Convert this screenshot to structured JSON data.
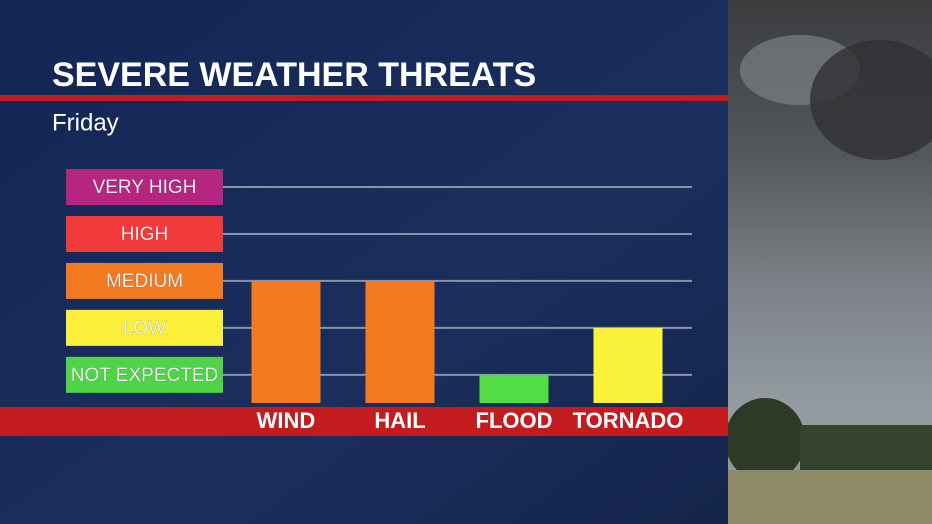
{
  "chart_data": {
    "type": "bar",
    "title": "SEVERE WEATHER THREATS",
    "subtitle": "Friday",
    "categories": [
      "WIND",
      "HAIL",
      "FLOOD",
      "TORNADO"
    ],
    "values": [
      3,
      3,
      1,
      2
    ],
    "colors": [
      "#f57a1f",
      "#f57a1f",
      "#52dc45",
      "#fbf23c"
    ],
    "ylim": [
      0.4,
      5
    ],
    "yticks": [
      {
        "value": 1,
        "label": "NOT EXPECTED"
      },
      {
        "value": 2,
        "label": "LOW"
      },
      {
        "value": 3,
        "label": "MEDIUM"
      },
      {
        "value": 4,
        "label": "HIGH"
      },
      {
        "value": 5,
        "label": "VERY HIGH"
      }
    ],
    "ytick_colors": [
      "#4fd447",
      "#fcef3a",
      "#f47a22",
      "#f03b3a",
      "#b62680"
    ],
    "grid": true
  }
}
